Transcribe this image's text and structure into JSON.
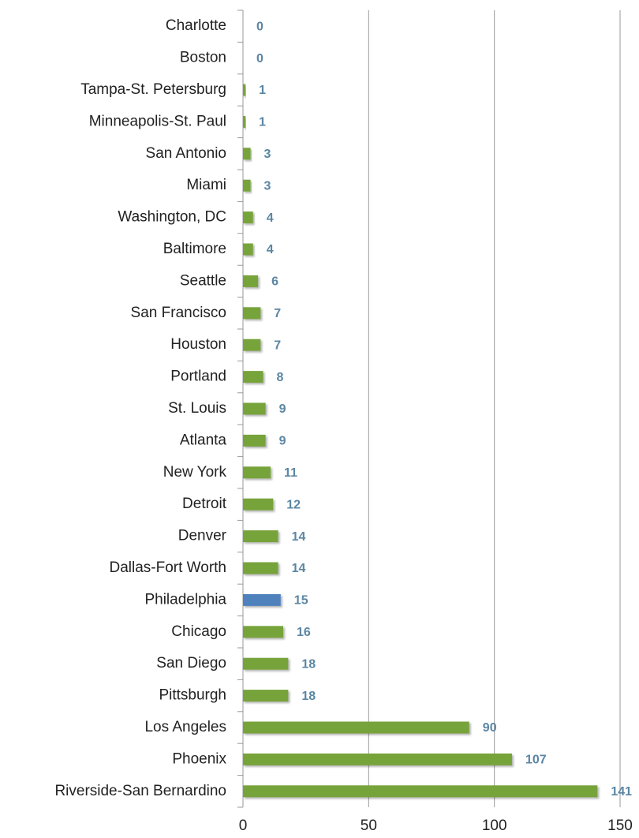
{
  "chart_data": {
    "type": "bar",
    "orientation": "horizontal",
    "categories": [
      "Charlotte",
      "Boston",
      "Tampa-St. Petersburg",
      "Minneapolis-St. Paul",
      "San Antonio",
      "Miami",
      "Washington, DC",
      "Baltimore",
      "Seattle",
      "San Francisco",
      "Houston",
      "Portland",
      "St. Louis",
      "Atlanta",
      "New York",
      "Detroit",
      "Denver",
      "Dallas-Fort Worth",
      "Philadelphia",
      "Chicago",
      "San Diego",
      "Pittsburgh",
      "Los Angeles",
      "Phoenix",
      "Riverside-San Bernardino"
    ],
    "values": [
      0,
      0,
      1,
      1,
      3,
      3,
      4,
      4,
      6,
      7,
      7,
      8,
      9,
      9,
      11,
      12,
      14,
      14,
      15,
      16,
      18,
      18,
      90,
      107,
      141
    ],
    "colors": [
      "#77a33b",
      "#77a33b",
      "#77a33b",
      "#77a33b",
      "#77a33b",
      "#77a33b",
      "#77a33b",
      "#77a33b",
      "#77a33b",
      "#77a33b",
      "#77a33b",
      "#77a33b",
      "#77a33b",
      "#77a33b",
      "#77a33b",
      "#77a33b",
      "#77a33b",
      "#77a33b",
      "#4f81bd",
      "#77a33b",
      "#77a33b",
      "#77a33b",
      "#77a33b",
      "#77a33b",
      "#77a33b"
    ],
    "xlim": [
      0,
      150
    ],
    "xticks": [
      0,
      50,
      100,
      150
    ],
    "grid": true
  }
}
